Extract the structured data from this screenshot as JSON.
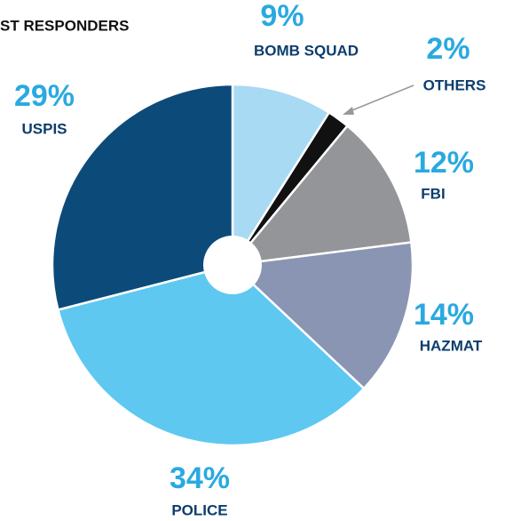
{
  "chart_data": {
    "type": "pie",
    "title": "ST RESPONDERS",
    "categories": [
      "BOMB SQUAD",
      "OTHERS",
      "FBI",
      "HAZMAT",
      "POLICE",
      "USPIS"
    ],
    "values": [
      9,
      2,
      12,
      14,
      34,
      29
    ],
    "value_labels": [
      "9%",
      "2%",
      "12%",
      "14%",
      "34%",
      "29%"
    ],
    "colors": [
      "#a9daf3",
      "#111111",
      "#949598",
      "#8a95b4",
      "#5ec8f1",
      "#0c4a7a"
    ]
  }
}
